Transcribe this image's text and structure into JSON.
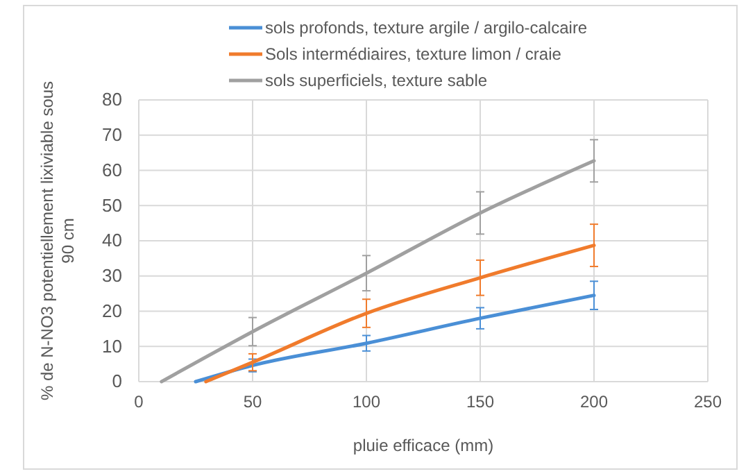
{
  "chart_data": {
    "type": "line",
    "xlabel": "pluie efficace (mm)",
    "ylabel": "% de N-NO3 potentiellement lixiviable sous 90 cm",
    "xlim": [
      0,
      250
    ],
    "xticks": [
      0,
      50,
      100,
      150,
      200,
      250
    ],
    "ylim": [
      0,
      80
    ],
    "yticks": [
      0,
      10,
      20,
      30,
      40,
      50,
      60,
      70,
      80
    ],
    "grid": true,
    "legend": "top",
    "marker": "none",
    "line_style": "solid",
    "series": [
      {
        "name": "sols profonds, texture argile / argilo-calcaire",
        "color": "#4a8fd6",
        "x": [
          25,
          50,
          100,
          150,
          200
        ],
        "values": [
          0,
          4.6,
          10.9,
          18,
          24.5
        ],
        "errors": [
          null,
          1.8,
          2.2,
          3,
          4
        ]
      },
      {
        "name": "Sols intermédiaires, texture limon / craie",
        "color": "#f07b2c",
        "x": [
          29.5,
          50,
          100,
          150,
          200
        ],
        "values": [
          0,
          5.5,
          19.4,
          29.5,
          38.7
        ],
        "errors": [
          null,
          2.4,
          4,
          5,
          6
        ]
      },
      {
        "name": "sols superficiels, texture sable",
        "color": "#a0a0a0",
        "x": [
          10,
          50,
          100,
          150,
          200
        ],
        "values": [
          0,
          14.2,
          30.8,
          47.9,
          62.7
        ],
        "errors": [
          null,
          4,
          5,
          6,
          6
        ]
      }
    ]
  }
}
